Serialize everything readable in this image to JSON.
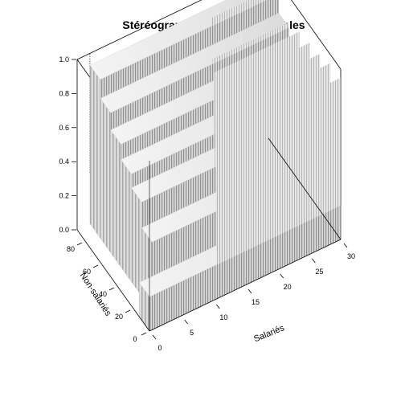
{
  "chart_data": {
    "type": "3d-surface",
    "title": "Stéréogramme des deux variables",
    "xlabel": "Salariés",
    "ylabel": "Non-salariés",
    "zlabel": "",
    "x_ticks": [
      "0",
      "5",
      "10",
      "15",
      "20",
      "25",
      "30"
    ],
    "y_ticks": [
      "0",
      "20",
      "40",
      "60",
      "80"
    ],
    "z_ticks": [
      "0.0",
      "0.2",
      "0.4",
      "0.6",
      "0.8",
      "1.0"
    ],
    "xlim": [
      0,
      30
    ],
    "ylim": [
      0,
      90
    ],
    "zlim": [
      0,
      1
    ],
    "steps": [
      {
        "z": 0.2,
        "z_back": 0.95
      },
      {
        "z": 0.4,
        "z_back": 0.95
      },
      {
        "z": 0.55,
        "z_back": 0.92
      },
      {
        "z": 0.63,
        "z_back": 0.9
      },
      {
        "z": 0.72,
        "z_back": 0.88
      },
      {
        "z": 0.82,
        "z_back": 0.85
      },
      {
        "z": 0.93,
        "z_back": 0.98
      }
    ],
    "colors": {
      "surface": "#d2d2d2",
      "stripe": "#9a9a9a",
      "box": "#000000"
    }
  }
}
